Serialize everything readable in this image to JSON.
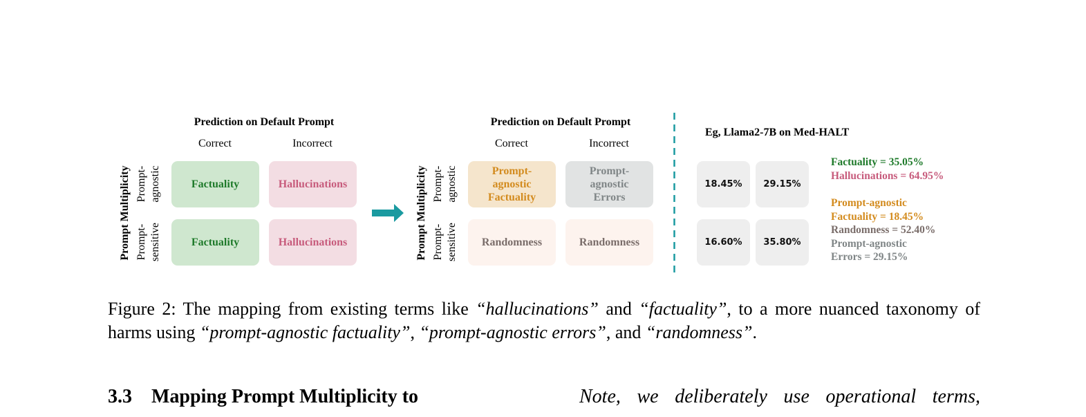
{
  "figure": {
    "panels": [
      {
        "title": "Prediction on Default Prompt",
        "columns": [
          "Correct",
          "Incorrect"
        ],
        "row_group": "Prompt Multiplicity",
        "row_labels": [
          [
            "Prompt-",
            "agnostic"
          ],
          [
            "Prompt-",
            "sensitive"
          ]
        ],
        "cells": [
          [
            {
              "lines": [
                "Factuality"
              ],
              "color": "#1e7a2a",
              "fill": "#cfe7cf"
            },
            {
              "lines": [
                "Hallucinations"
              ],
              "color": "#c75b7c",
              "fill": "#f3dde3"
            }
          ],
          [
            {
              "lines": [
                "Factuality"
              ],
              "color": "#1e7a2a",
              "fill": "#cfe7cf"
            },
            {
              "lines": [
                "Hallucinations"
              ],
              "color": "#c75b7c",
              "fill": "#f3dde3"
            }
          ]
        ]
      },
      {
        "title": "Prediction on Default Prompt",
        "columns": [
          "Correct",
          "Incorrect"
        ],
        "row_group": "Prompt Multiplicity",
        "row_labels": [
          [
            "Prompt-",
            "agnostic"
          ],
          [
            "Prompt-",
            "sensitive"
          ]
        ],
        "cells": [
          [
            {
              "lines": [
                "Prompt-",
                "agnostic",
                "Factuality"
              ],
              "color": "#d38b1e",
              "fill": "#f5e5cc"
            },
            {
              "lines": [
                "Prompt-",
                "agnostic",
                "Errors"
              ],
              "color": "#808687",
              "fill": "#e1e3e3"
            }
          ],
          [
            {
              "lines": [
                "Randomness"
              ],
              "color": "#7a6d6a",
              "fill": "#fdf3ee"
            },
            {
              "lines": [
                "Randomness"
              ],
              "color": "#7a6d6a",
              "fill": "#fdf3ee"
            }
          ]
        ]
      }
    ],
    "example": {
      "title": "Eg, Llama2-7B on Med-HALT",
      "cells": [
        [
          "18.45%",
          "29.15%"
        ],
        [
          "16.60%",
          "35.80%"
        ]
      ],
      "legend": [
        {
          "color": "#1e7a2a",
          "lines": [
            "Factuality = 35.05%"
          ]
        },
        {
          "color": "#c75b7c",
          "lines": [
            "Hallucinations = 64.95%"
          ]
        },
        {
          "color": "#d38b1e",
          "lines": [
            "Prompt-agnostic",
            "Factuality = 18.45%"
          ]
        },
        {
          "color": "#7a6d6a",
          "lines": [
            "Randomness = 52.40%"
          ]
        },
        {
          "color": "#808687",
          "lines": [
            "Prompt-agnostic",
            "Errors = 29.15%"
          ]
        }
      ]
    },
    "caption": [
      {
        "text": "Figure 2: The mapping from existing terms like ",
        "italic": false
      },
      {
        "text": "“hallucinations”",
        "italic": true
      },
      {
        "text": " and ",
        "italic": false
      },
      {
        "text": "“factuality”",
        "italic": true
      },
      {
        "text": ", to a more nuanced taxonomy of harms using ",
        "italic": false
      },
      {
        "text": "“prompt-agnostic factuality”",
        "italic": true
      },
      {
        "text": ", ",
        "italic": false
      },
      {
        "text": "“prompt-agnostic errors”",
        "italic": true
      },
      {
        "text": ", and ",
        "italic": false
      },
      {
        "text": "“randomness”",
        "italic": true
      },
      {
        "text": ".",
        "italic": false
      }
    ]
  },
  "section": {
    "number": "3.3",
    "title": "Mapping Prompt Multiplicity to"
  },
  "right_column": {
    "text": "Note, we deliberately use operational terms,"
  }
}
